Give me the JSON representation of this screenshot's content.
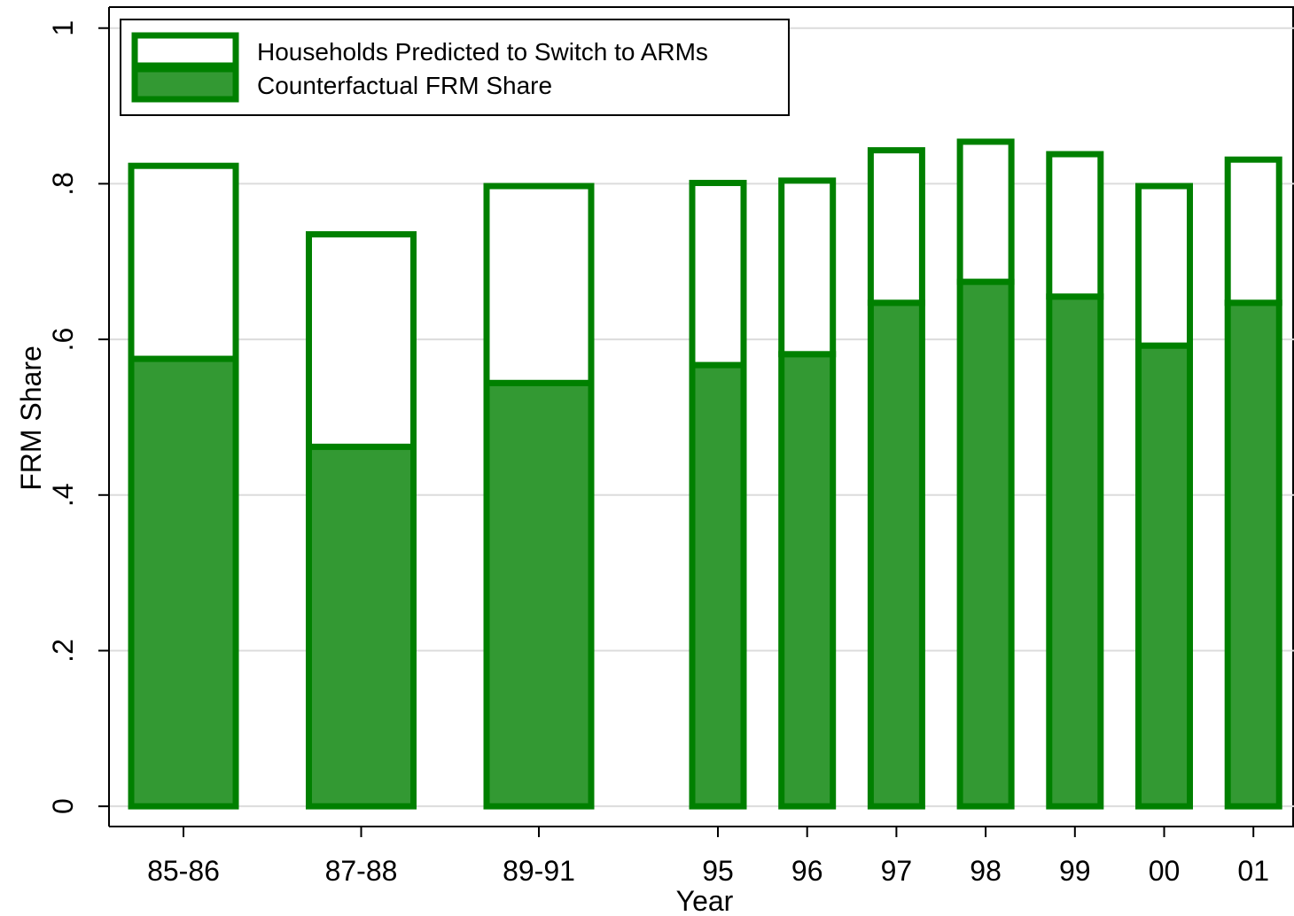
{
  "chart_data": {
    "type": "stacked_bar",
    "x_label": "Year",
    "y_label": "FRM Share",
    "categories": [
      "85-86",
      "87-88",
      "89-91",
      "95",
      "96",
      "97",
      "98",
      "99",
      "00",
      "01"
    ],
    "series": [
      {
        "name": "Households Predicted to Switch to ARMs",
        "color": "#ffffff",
        "edgecolor": "#008000",
        "values": [
          0.248,
          0.273,
          0.253,
          0.234,
          0.223,
          0.196,
          0.18,
          0.183,
          0.205,
          0.184
        ]
      },
      {
        "name": "Counterfactual FRM Share",
        "color": "#339933",
        "edgecolor": "#008000",
        "values": [
          0.575,
          0.462,
          0.544,
          0.567,
          0.581,
          0.647,
          0.674,
          0.655,
          0.592,
          0.647
        ]
      }
    ],
    "ylim": [
      -0.026,
      1.027
    ],
    "yticks": [
      0,
      {
        "value": 0.2,
        "label": ".2"
      },
      {
        "value": 0.4,
        "label": ".4"
      },
      {
        "value": 0.6,
        "label": ".6"
      },
      {
        "value": 0.8,
        "label": ".8"
      },
      1
    ],
    "grid": true,
    "legend": "upper left"
  }
}
